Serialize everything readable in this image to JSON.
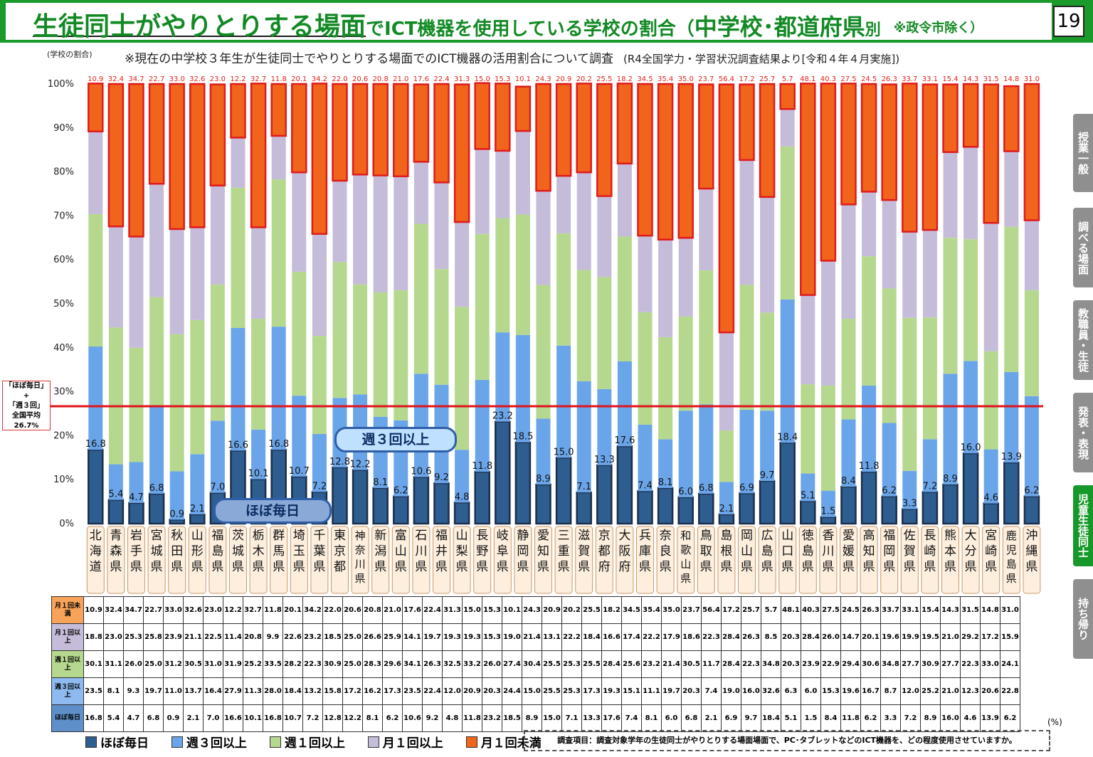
{
  "header": {
    "title_part1": "生徒同士がやりとりする場面",
    "title_part2": "でICT機器を使用している学校の割合（",
    "title_part3": "中学校･都道府県",
    "title_part4": "別",
    "title_part5": "※政令市除く）",
    "page_number": "19"
  },
  "subtitle": "※現在の中学校３年生が生徒同士でやりとりする場面でのICT機器の活用割合について調査",
  "source": "(R4全国学力・学習状況調査結果より[令和４年４月実施])",
  "average_box": {
    "line1": "「ほぼ毎日」",
    "line2": "+",
    "line3": "「週３回」",
    "line4": "全国平均",
    "line5": "26.7%"
  },
  "pills": {
    "week3": "週３回以上",
    "daily": "ほぼ毎日"
  },
  "side_tabs": [
    "授業一般",
    "調べる場面",
    "教職員・生徒",
    "発表・表現",
    "児童生徒同士",
    "持ち帰り"
  ],
  "legend_items": [
    "ほぼ毎日",
    "週３回以上",
    "週１回以上",
    "月１回以上",
    "月１回未満"
  ],
  "table_row_heads": [
    "月１回未満",
    "月１回以上",
    "週１回以上",
    "週３回以上",
    "ほぼ毎日"
  ],
  "pct_unit": "(%)",
  "note": "調査項目：調査対象学年の生徒同士がやりとりする場面場面で、PC･タブレットなどのICT機器を、どの程度使用させていますか。",
  "chart_data": {
    "type": "bar",
    "stacked": true,
    "ylabel": "(学校の割合)",
    "ylim": [
      0,
      100
    ],
    "ytick_labels": [
      "0%",
      "10%",
      "20%",
      "30%",
      "40%",
      "50%",
      "60%",
      "70%",
      "80%",
      "90%",
      "100%"
    ],
    "reference_line": {
      "value": 26.7
    },
    "categories": [
      "北海道",
      "青森県",
      "岩手県",
      "宮城県",
      "秋田県",
      "山形県",
      "福島県",
      "茨城県",
      "栃木県",
      "群馬県",
      "埼玉県",
      "千葉県",
      "東京都",
      "神奈川県",
      "新潟県",
      "富山県",
      "石川県",
      "福井県",
      "山梨県",
      "長野県",
      "岐阜県",
      "静岡県",
      "愛知県",
      "三重県",
      "滋賀県",
      "京都府",
      "大阪府",
      "兵庫県",
      "奈良県",
      "和歌山県",
      "鳥取県",
      "島根県",
      "岡山県",
      "広島県",
      "山口県",
      "徳島県",
      "香川県",
      "愛媛県",
      "高知県",
      "福岡県",
      "佐賀県",
      "長崎県",
      "熊本県",
      "大分県",
      "宮崎県",
      "鹿児島県",
      "沖縄県"
    ],
    "series": [
      {
        "name": "ほぼ毎日",
        "color": "#2e5d8f",
        "values": [
          16.8,
          5.4,
          4.7,
          6.8,
          0.9,
          2.1,
          7.0,
          16.6,
          10.1,
          16.8,
          10.7,
          7.2,
          12.8,
          12.2,
          8.1,
          6.2,
          10.6,
          9.2,
          4.8,
          11.8,
          23.2,
          18.5,
          8.9,
          15.0,
          7.1,
          13.3,
          17.6,
          7.4,
          8.1,
          6.0,
          6.8,
          2.1,
          6.9,
          9.7,
          18.4,
          5.1,
          1.5,
          8.4,
          11.8,
          6.2,
          3.3,
          7.2,
          8.9,
          16.0,
          4.6,
          13.9,
          6.2
        ]
      },
      {
        "name": "週３回以上",
        "color": "#6aa5ea",
        "values": [
          23.5,
          8.1,
          9.3,
          19.7,
          11.0,
          13.7,
          16.4,
          27.9,
          11.3,
          28.0,
          18.4,
          13.2,
          15.8,
          17.2,
          16.2,
          17.3,
          23.5,
          22.4,
          12.0,
          20.9,
          20.3,
          24.4,
          15.0,
          25.5,
          25.3,
          17.3,
          19.3,
          15.1,
          11.1,
          19.7,
          20.3,
          7.4,
          19.0,
          16.0,
          32.6,
          6.3,
          6.0,
          15.3,
          19.6,
          16.7,
          8.7,
          12.0,
          25.2,
          21.0,
          12.3,
          20.6,
          22.8
        ]
      },
      {
        "name": "週１回以上",
        "color": "#b6d88e",
        "values": [
          30.1,
          31.1,
          26.0,
          25.0,
          31.2,
          30.5,
          31.0,
          31.9,
          25.2,
          33.5,
          28.2,
          22.3,
          30.9,
          25.0,
          28.3,
          29.6,
          34.1,
          26.3,
          32.5,
          33.2,
          26.0,
          27.4,
          30.4,
          25.5,
          25.3,
          25.5,
          28.4,
          25.6,
          23.2,
          21.4,
          30.5,
          11.7,
          28.4,
          22.3,
          34.8,
          20.3,
          23.9,
          22.9,
          29.4,
          30.6,
          34.8,
          27.7,
          30.9,
          27.7,
          22.3,
          33.0,
          24.1
        ]
      },
      {
        "name": "月１回以上",
        "color": "#c5bcd9",
        "values": [
          18.8,
          23.0,
          25.3,
          25.8,
          23.9,
          21.1,
          22.5,
          11.4,
          20.8,
          9.9,
          22.6,
          23.2,
          18.5,
          25.0,
          26.6,
          25.9,
          14.1,
          19.7,
          19.3,
          19.3,
          15.3,
          19.0,
          21.4,
          13.1,
          22.2,
          18.4,
          16.6,
          17.4,
          22.2,
          17.9,
          18.6,
          22.3,
          28.4,
          26.3,
          8.5,
          20.3,
          28.4,
          26.0,
          14.7,
          20.1,
          19.6,
          19.9,
          19.5,
          21.0,
          29.2,
          17.2,
          15.9
        ]
      },
      {
        "name": "月１回未満",
        "color": "#f0641c",
        "values": [
          10.9,
          32.4,
          34.7,
          22.7,
          33.0,
          32.6,
          23.0,
          12.2,
          32.7,
          11.8,
          20.1,
          34.2,
          22.0,
          20.6,
          20.8,
          21.0,
          17.6,
          22.4,
          31.3,
          15.0,
          15.3,
          10.1,
          24.3,
          20.9,
          20.2,
          25.5,
          18.2,
          34.5,
          35.4,
          35.0,
          23.7,
          56.4,
          17.2,
          25.7,
          5.7,
          48.1,
          40.3,
          27.5,
          24.5,
          26.3,
          33.7,
          33.1,
          15.4,
          14.3,
          31.5,
          14.8,
          31.0
        ]
      }
    ]
  }
}
